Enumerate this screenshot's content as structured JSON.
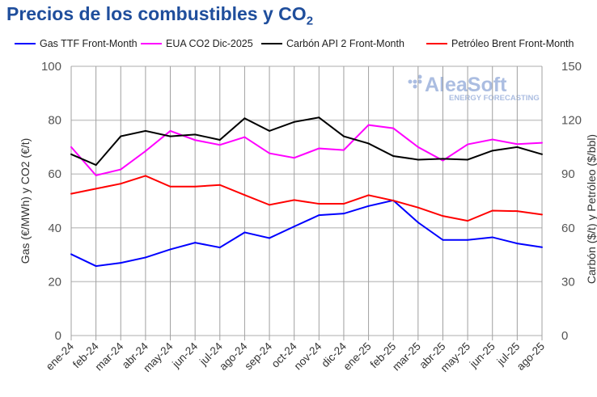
{
  "chart_data": {
    "type": "line",
    "title": "Precios de los combustibles y CO",
    "title_subscript": "2",
    "categories": [
      "ene-24",
      "feb-24",
      "mar-24",
      "abr-24",
      "may-24",
      "jun-24",
      "jul-24",
      "ago-24",
      "sep-24",
      "oct-24",
      "nov-24",
      "dic-24",
      "ene-25",
      "feb-25",
      "mar-25",
      "abr-25",
      "may-25",
      "jun-25",
      "jul-25",
      "ago-25"
    ],
    "ylabel_left": "Gas (€/MWh) y CO2 (€/t)",
    "ylabel_right": "Carbón ($/t) y Petróleo ($/bbl)",
    "ylim_left": [
      0,
      100
    ],
    "ylim_right": [
      0,
      150
    ],
    "yticks_left": [
      "0",
      "20",
      "40",
      "60",
      "80",
      "100"
    ],
    "yticks_right": [
      "0",
      "30",
      "60",
      "90",
      "120",
      "150"
    ],
    "grid": true,
    "legend_position": "top",
    "series": [
      {
        "name": "Gas TTF Front-Month",
        "axis": "left",
        "color": "#0000ff",
        "values": [
          30.2,
          25.8,
          27,
          29,
          32,
          34.5,
          32.7,
          38.3,
          36.2,
          40.5,
          44.7,
          45.3,
          48.1,
          50.2,
          42,
          35.5,
          35.5,
          36.5,
          34.2,
          32.8
        ]
      },
      {
        "name": "EUA CO2 Dic-2025",
        "axis": "left",
        "color": "#ff00ff",
        "values": [
          70,
          59.5,
          61.7,
          68.5,
          76,
          72.6,
          70.8,
          73.7,
          67.7,
          66,
          69.5,
          68.9,
          78.2,
          77,
          70,
          65,
          71,
          72.8,
          71.1,
          71.6
        ]
      },
      {
        "name": "Carbón API 2 Front-Month",
        "axis": "right",
        "color": "#000000",
        "values": [
          101,
          95,
          111,
          114,
          111,
          112,
          109,
          121,
          114,
          119,
          121.5,
          111,
          107,
          100,
          98,
          98.5,
          98,
          103,
          105,
          101
        ]
      },
      {
        "name": "Petróleo Brent Front-Month",
        "axis": "right",
        "color": "#ff0000",
        "values": [
          79,
          81.8,
          84.6,
          89,
          83,
          83,
          83.9,
          78.3,
          72.8,
          75.5,
          73.4,
          73.4,
          78.2,
          75.2,
          71.3,
          66.6,
          63.9,
          69.6,
          69.3,
          67.4
        ]
      }
    ]
  },
  "logo": {
    "name": "AleaSoft",
    "tagline": "ENERGY FORECASTING",
    "color": "#8fa8d8"
  }
}
